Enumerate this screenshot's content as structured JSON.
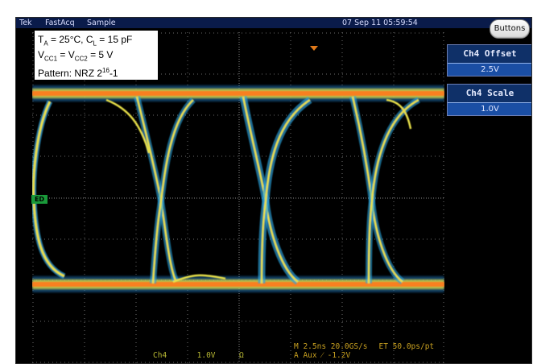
{
  "topbar": {
    "brand": "Tek",
    "mode": "FastAcq",
    "acq": "Sample",
    "datetime": "07 Sep 11 05:59:54"
  },
  "buttons_label": "Buttons",
  "menu": {
    "offset_title": "Ch4 Offset",
    "offset_value": "2.5V",
    "scale_title": "Ch4 Scale",
    "scale_value": "1.0V"
  },
  "conditions": {
    "line1_a": "T",
    "line1_a_sub": "A",
    "line1_b": " = 25°C, C",
    "line1_c_sub": "L",
    "line1_d": " = 15 pF",
    "line2_a": "V",
    "line2_a_sub": "CC1",
    "line2_b": " = V",
    "line2_c_sub": "CC2",
    "line2_d": " = 5 V",
    "line3_a": "Pattern: NRZ 2",
    "line3_sup": "16",
    "line3_b": "-1"
  },
  "readout": {
    "channel": "Ch4",
    "volts": "1.0V",
    "coupling": "Ω",
    "horiz_line1": "M 2.5ns 20.0GS/s",
    "et": "ET 50.0ps/pt",
    "horiz_line2": "A  Aux  ⁄  -1.2V"
  },
  "channel_marker": "ED",
  "colors": {
    "trace_hot": "#ff6a10",
    "trace_warm": "#f2e04a",
    "trace_cool": "#3db4e6",
    "grid": "#7a7a7a",
    "panel": "#0f3068"
  }
}
